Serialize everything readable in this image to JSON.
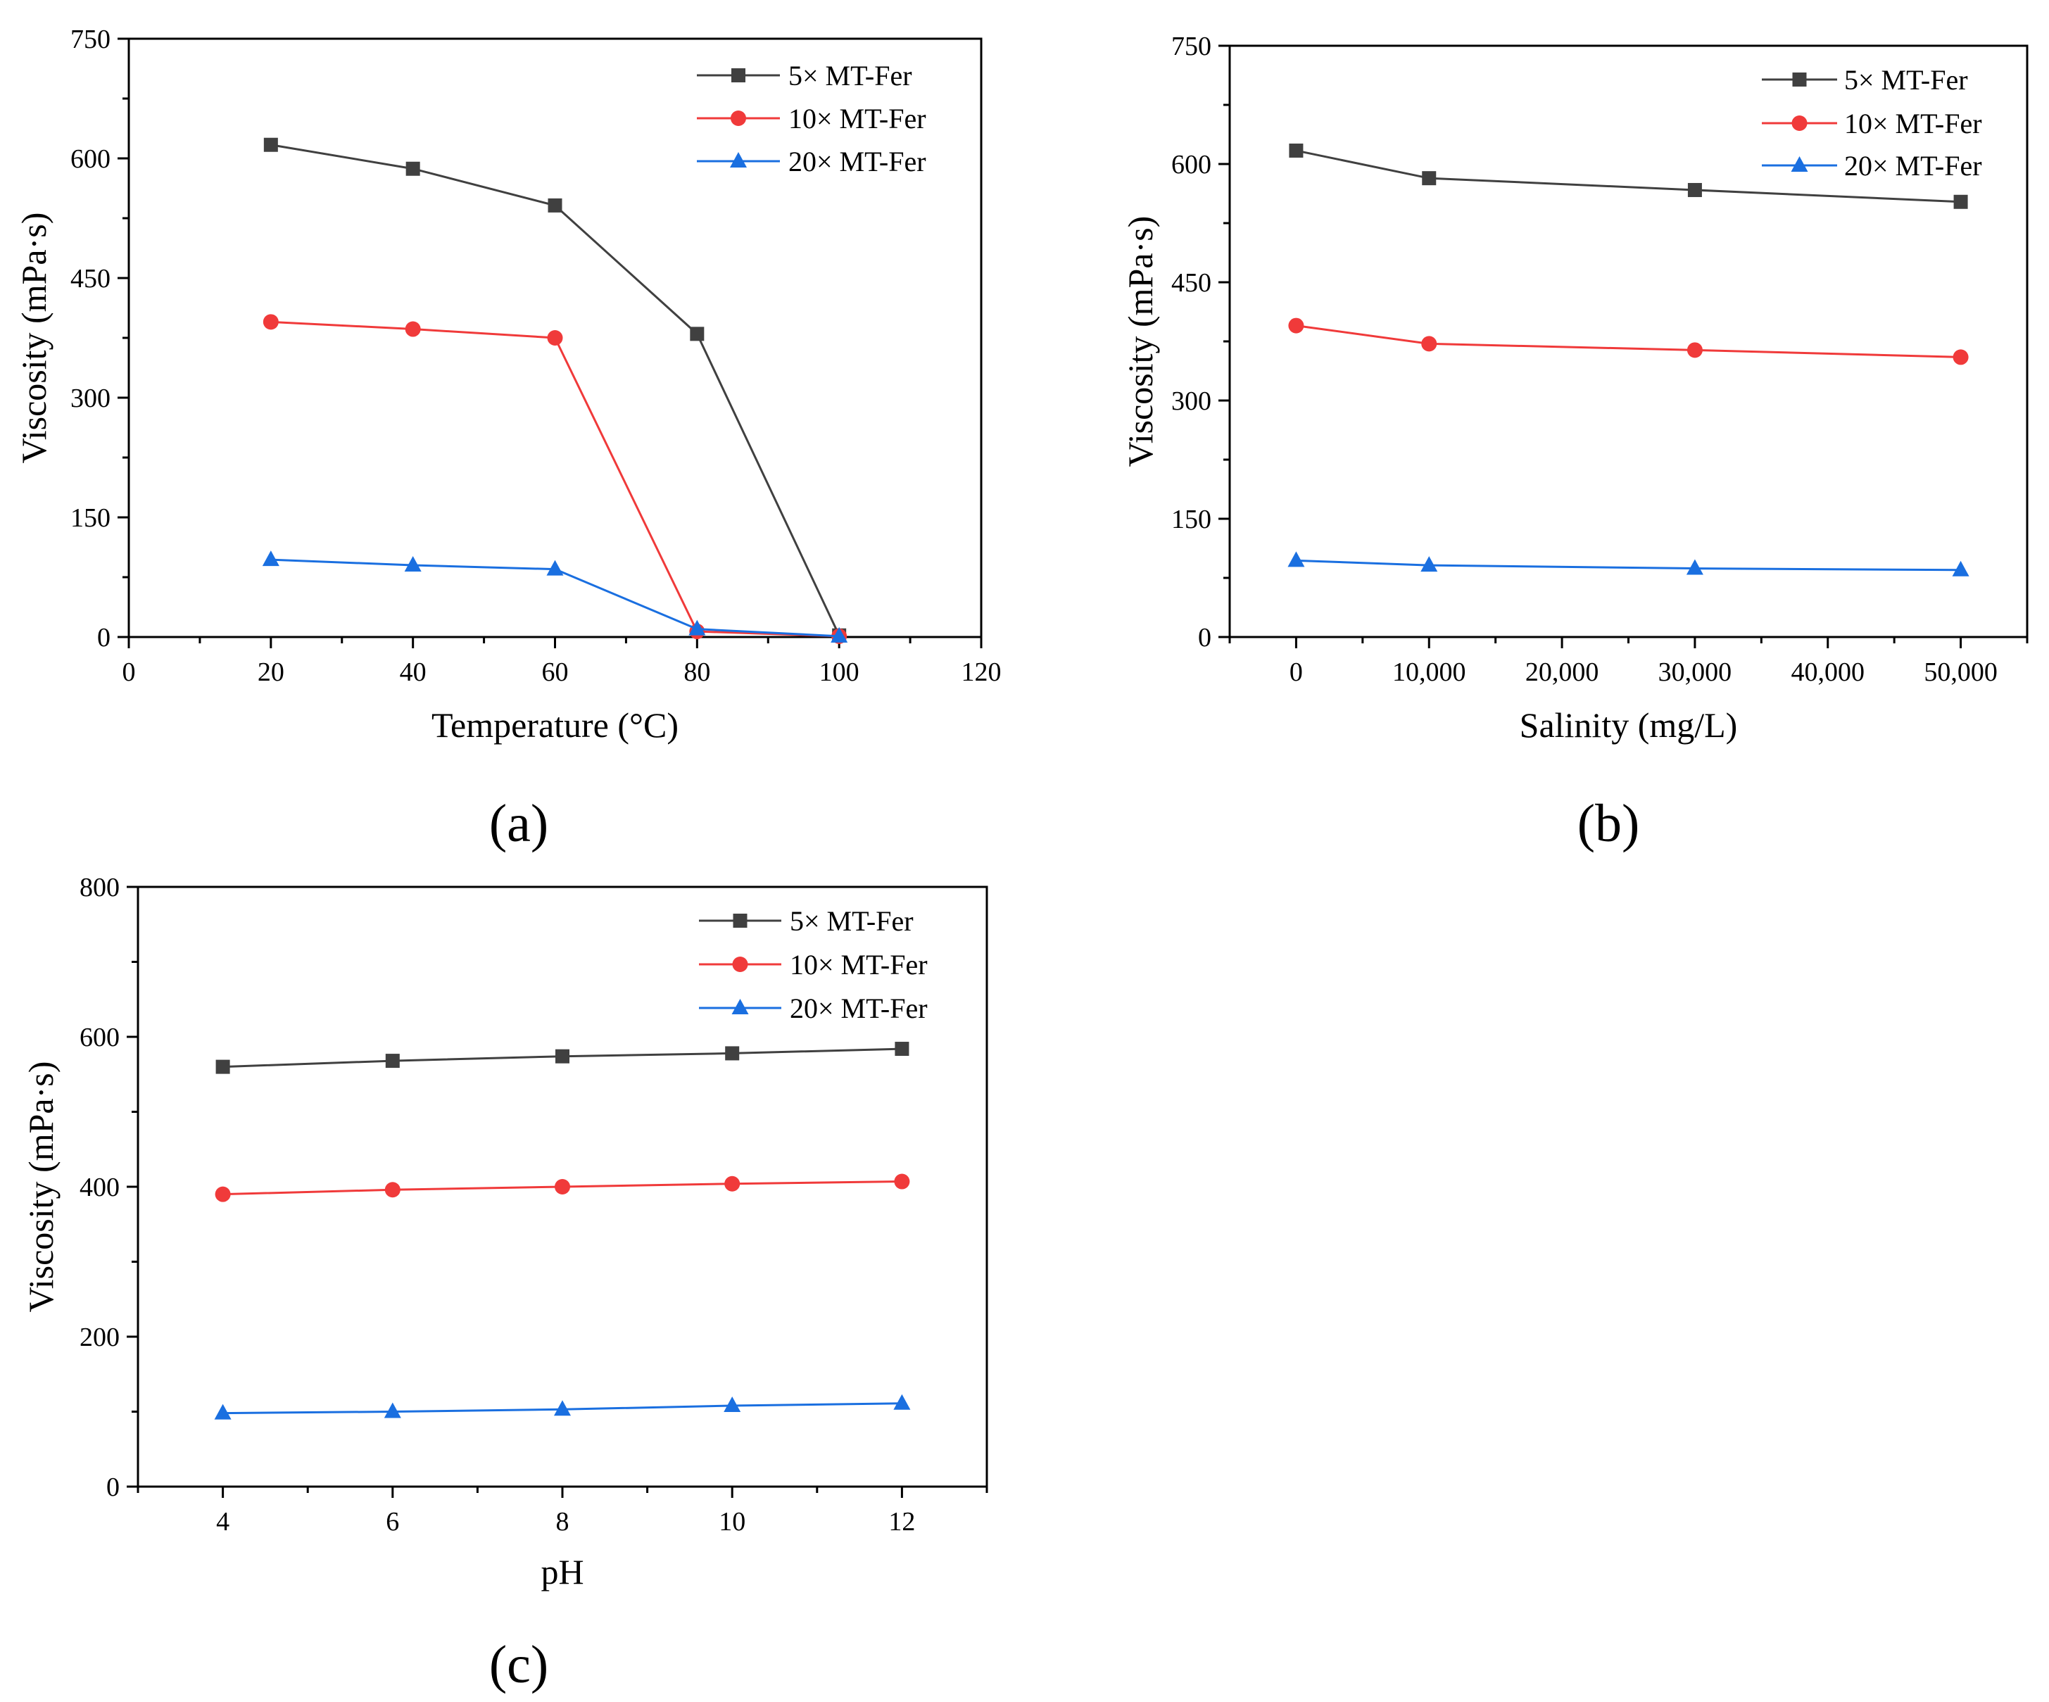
{
  "series_names": [
    "5× MT-Fer",
    "10× MT-Fer",
    "20× MT-Fer"
  ],
  "series_colors": [
    "#404040",
    "#f03a3a",
    "#1a6fe0"
  ],
  "series_markers": [
    "square",
    "circle",
    "triangle"
  ],
  "chart_data": [
    {
      "id": "a",
      "panel_label": "(a)",
      "type": "line",
      "xlabel": "Temperature (°C)",
      "ylabel": "Viscosity (mPa·s)",
      "xlim": [
        0,
        120
      ],
      "ylim": [
        0,
        750
      ],
      "xticks": [
        0,
        20,
        40,
        60,
        80,
        100,
        120
      ],
      "xtick_labels": [
        "0",
        "20",
        "40",
        "60",
        "80",
        "100",
        "120"
      ],
      "yticks": [
        0,
        150,
        300,
        450,
        600,
        750
      ],
      "ytick_labels": [
        "0",
        "150",
        "300",
        "450",
        "600",
        "750"
      ],
      "x": [
        20,
        40,
        60,
        80,
        100
      ],
      "series": [
        {
          "name": "5× MT-Fer",
          "values": [
            617,
            587,
            541,
            380,
            2
          ]
        },
        {
          "name": "10× MT-Fer",
          "values": [
            395,
            386,
            375,
            7,
            1
          ]
        },
        {
          "name": "20× MT-Fer",
          "values": [
            97,
            90,
            85,
            10,
            1
          ]
        }
      ],
      "legend": "top-right"
    },
    {
      "id": "b",
      "panel_label": "(b)",
      "type": "line",
      "xlabel": "Salinity (mg/L)",
      "ylabel": "Viscosity (mPa·s)",
      "xlim": [
        -5000,
        55000
      ],
      "ylim": [
        0,
        750
      ],
      "xticks": [
        0,
        10000,
        20000,
        30000,
        40000,
        50000
      ],
      "xtick_labels": [
        "0",
        "10,000",
        "20,000",
        "30,000",
        "40,000",
        "50,000"
      ],
      "yticks": [
        0,
        150,
        300,
        450,
        600,
        750
      ],
      "ytick_labels": [
        "0",
        "150",
        "300",
        "450",
        "600",
        "750"
      ],
      "x": [
        0,
        10000,
        30000,
        50000
      ],
      "series": [
        {
          "name": "5× MT-Fer",
          "values": [
            617,
            582,
            567,
            552
          ]
        },
        {
          "name": "10× MT-Fer",
          "values": [
            395,
            372,
            364,
            355
          ]
        },
        {
          "name": "20× MT-Fer",
          "values": [
            97,
            91,
            87,
            85
          ]
        }
      ],
      "legend": "top-right"
    },
    {
      "id": "c",
      "panel_label": "(c)",
      "type": "line",
      "xlabel": "pH",
      "ylabel": "Viscosity (mPa·s)",
      "xlim": [
        3,
        13
      ],
      "ylim": [
        0,
        800
      ],
      "xticks": [
        4,
        6,
        8,
        10,
        12
      ],
      "xtick_labels": [
        "4",
        "6",
        "8",
        "10",
        "12"
      ],
      "yticks": [
        0,
        200,
        400,
        600,
        800
      ],
      "ytick_labels": [
        "0",
        "200",
        "400",
        "600",
        "800"
      ],
      "x": [
        4,
        6,
        8,
        10,
        12
      ],
      "series": [
        {
          "name": "5× MT-Fer",
          "values": [
            560,
            568,
            574,
            578,
            584
          ]
        },
        {
          "name": "10× MT-Fer",
          "values": [
            390,
            396,
            400,
            404,
            407
          ]
        },
        {
          "name": "20× MT-Fer",
          "values": [
            98,
            100,
            103,
            108,
            111
          ]
        }
      ],
      "legend": "top-right"
    }
  ]
}
